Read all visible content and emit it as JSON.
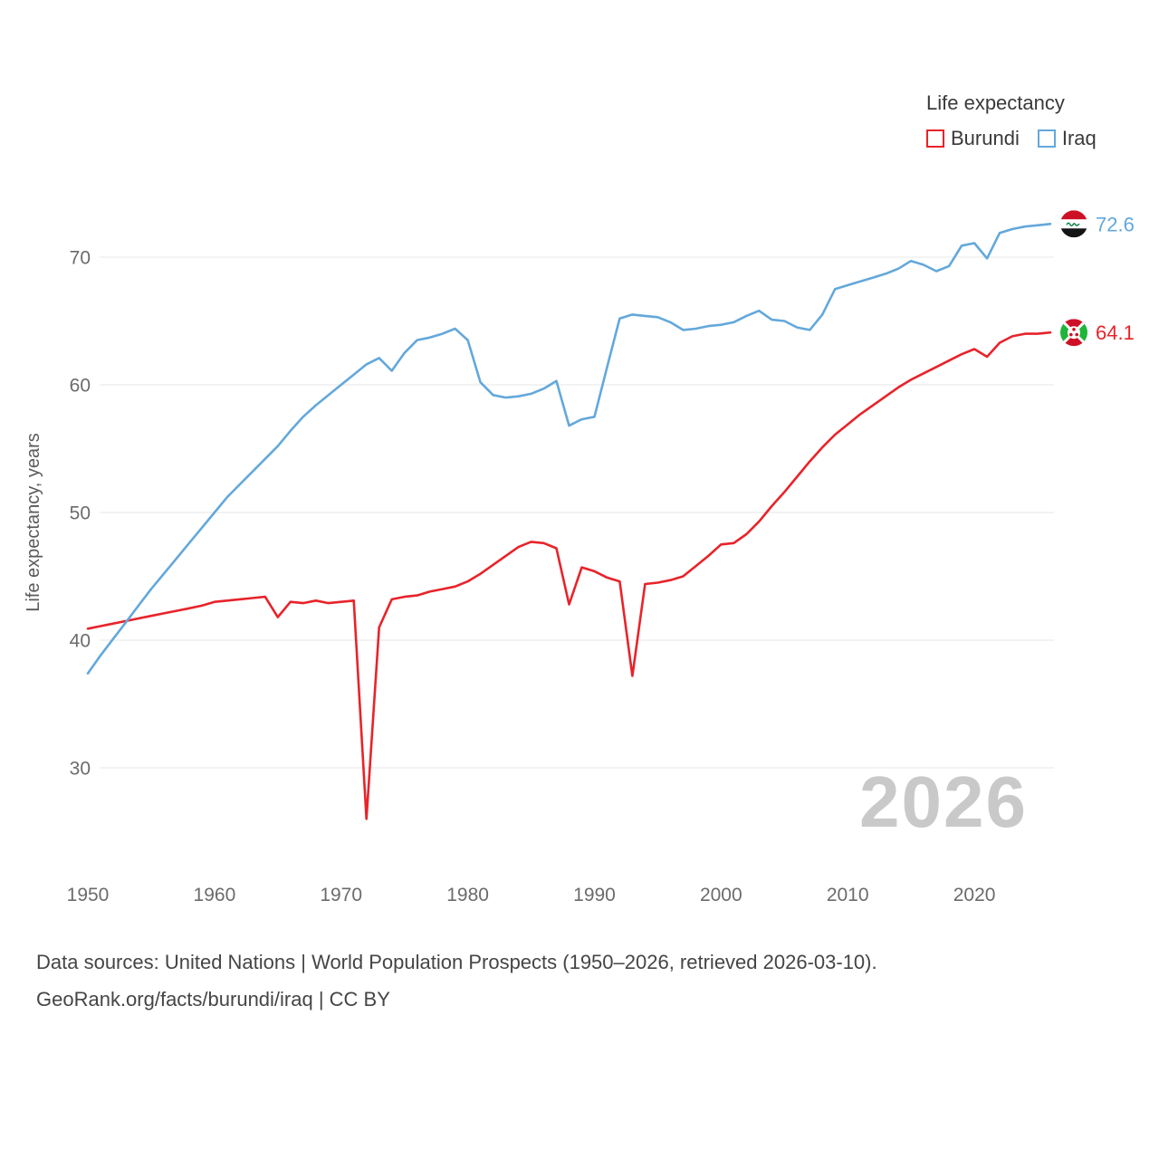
{
  "legend": {
    "title": "Life expectancy",
    "series": [
      {
        "label": "Burundi"
      },
      {
        "label": "Iraq"
      }
    ]
  },
  "watermark": "2026",
  "footer": {
    "line1": "Data sources: United Nations | World Population Prospects (1950–2026, retrieved 2026-03-10).",
    "line2": "GeoRank.org/facts/burundi/iraq | CC BY"
  },
  "chart_data": {
    "type": "line",
    "title": "Life expectancy",
    "ylabel": "Life expectancy, years",
    "xlabel": "",
    "xlim": [
      1950,
      2026
    ],
    "ylim": [
      24,
      75
    ],
    "x_ticks": [
      1950,
      1960,
      1970,
      1980,
      1990,
      2000,
      2010,
      2020
    ],
    "y_ticks": [
      30,
      40,
      50,
      60,
      70
    ],
    "grid": "horizontal",
    "legend_position": "top-right",
    "x": [
      1950,
      1951,
      1952,
      1953,
      1954,
      1955,
      1956,
      1957,
      1958,
      1959,
      1960,
      1961,
      1962,
      1963,
      1964,
      1965,
      1966,
      1967,
      1968,
      1969,
      1970,
      1971,
      1972,
      1973,
      1974,
      1975,
      1976,
      1977,
      1978,
      1979,
      1980,
      1981,
      1982,
      1983,
      1984,
      1985,
      1986,
      1987,
      1988,
      1989,
      1990,
      1991,
      1992,
      1993,
      1994,
      1995,
      1996,
      1997,
      1998,
      1999,
      2000,
      2001,
      2002,
      2003,
      2004,
      2005,
      2006,
      2007,
      2008,
      2009,
      2010,
      2011,
      2012,
      2013,
      2014,
      2015,
      2016,
      2017,
      2018,
      2019,
      2020,
      2021,
      2022,
      2023,
      2024,
      2025,
      2026
    ],
    "series": [
      {
        "name": "Burundi",
        "color": "#e8232a",
        "end_label": "64.1",
        "values": [
          40.9,
          41.1,
          41.3,
          41.5,
          41.7,
          41.9,
          42.1,
          42.3,
          42.5,
          42.7,
          43.0,
          43.1,
          43.2,
          43.3,
          43.4,
          41.8,
          43.0,
          42.9,
          43.1,
          42.9,
          43.0,
          43.1,
          26.0,
          41.0,
          43.2,
          43.4,
          43.5,
          43.8,
          44.0,
          44.2,
          44.6,
          45.2,
          45.9,
          46.6,
          47.3,
          47.7,
          47.6,
          47.2,
          42.8,
          45.7,
          45.4,
          44.9,
          44.6,
          37.2,
          44.4,
          44.5,
          44.7,
          45.0,
          45.8,
          46.6,
          47.5,
          47.6,
          48.3,
          49.3,
          50.5,
          51.6,
          52.8,
          54.0,
          55.1,
          56.1,
          56.9,
          57.7,
          58.4,
          59.1,
          59.8,
          60.4,
          60.9,
          61.4,
          61.9,
          62.4,
          62.8,
          62.2,
          63.3,
          63.8,
          64.0,
          64.0,
          64.1
        ]
      },
      {
        "name": "Iraq",
        "color": "#63a8db",
        "end_label": "72.6",
        "values": [
          37.4,
          38.8,
          40.1,
          41.4,
          42.7,
          44.0,
          45.2,
          46.4,
          47.6,
          48.8,
          50.0,
          51.2,
          52.2,
          53.2,
          54.2,
          55.2,
          56.4,
          57.5,
          58.4,
          59.2,
          60.0,
          60.8,
          61.6,
          62.1,
          61.1,
          62.5,
          63.5,
          63.7,
          64.0,
          64.4,
          63.5,
          60.2,
          59.2,
          59.0,
          59.1,
          59.3,
          59.7,
          60.3,
          56.8,
          57.3,
          57.5,
          61.4,
          65.2,
          65.5,
          65.4,
          65.3,
          64.9,
          64.3,
          64.4,
          64.6,
          64.7,
          64.9,
          65.4,
          65.8,
          65.1,
          65.0,
          64.5,
          64.3,
          65.5,
          67.5,
          67.8,
          68.1,
          68.4,
          68.7,
          69.1,
          69.7,
          69.4,
          68.9,
          69.3,
          70.9,
          71.1,
          69.9,
          71.9,
          72.2,
          72.4,
          72.5,
          72.6
        ]
      }
    ]
  }
}
